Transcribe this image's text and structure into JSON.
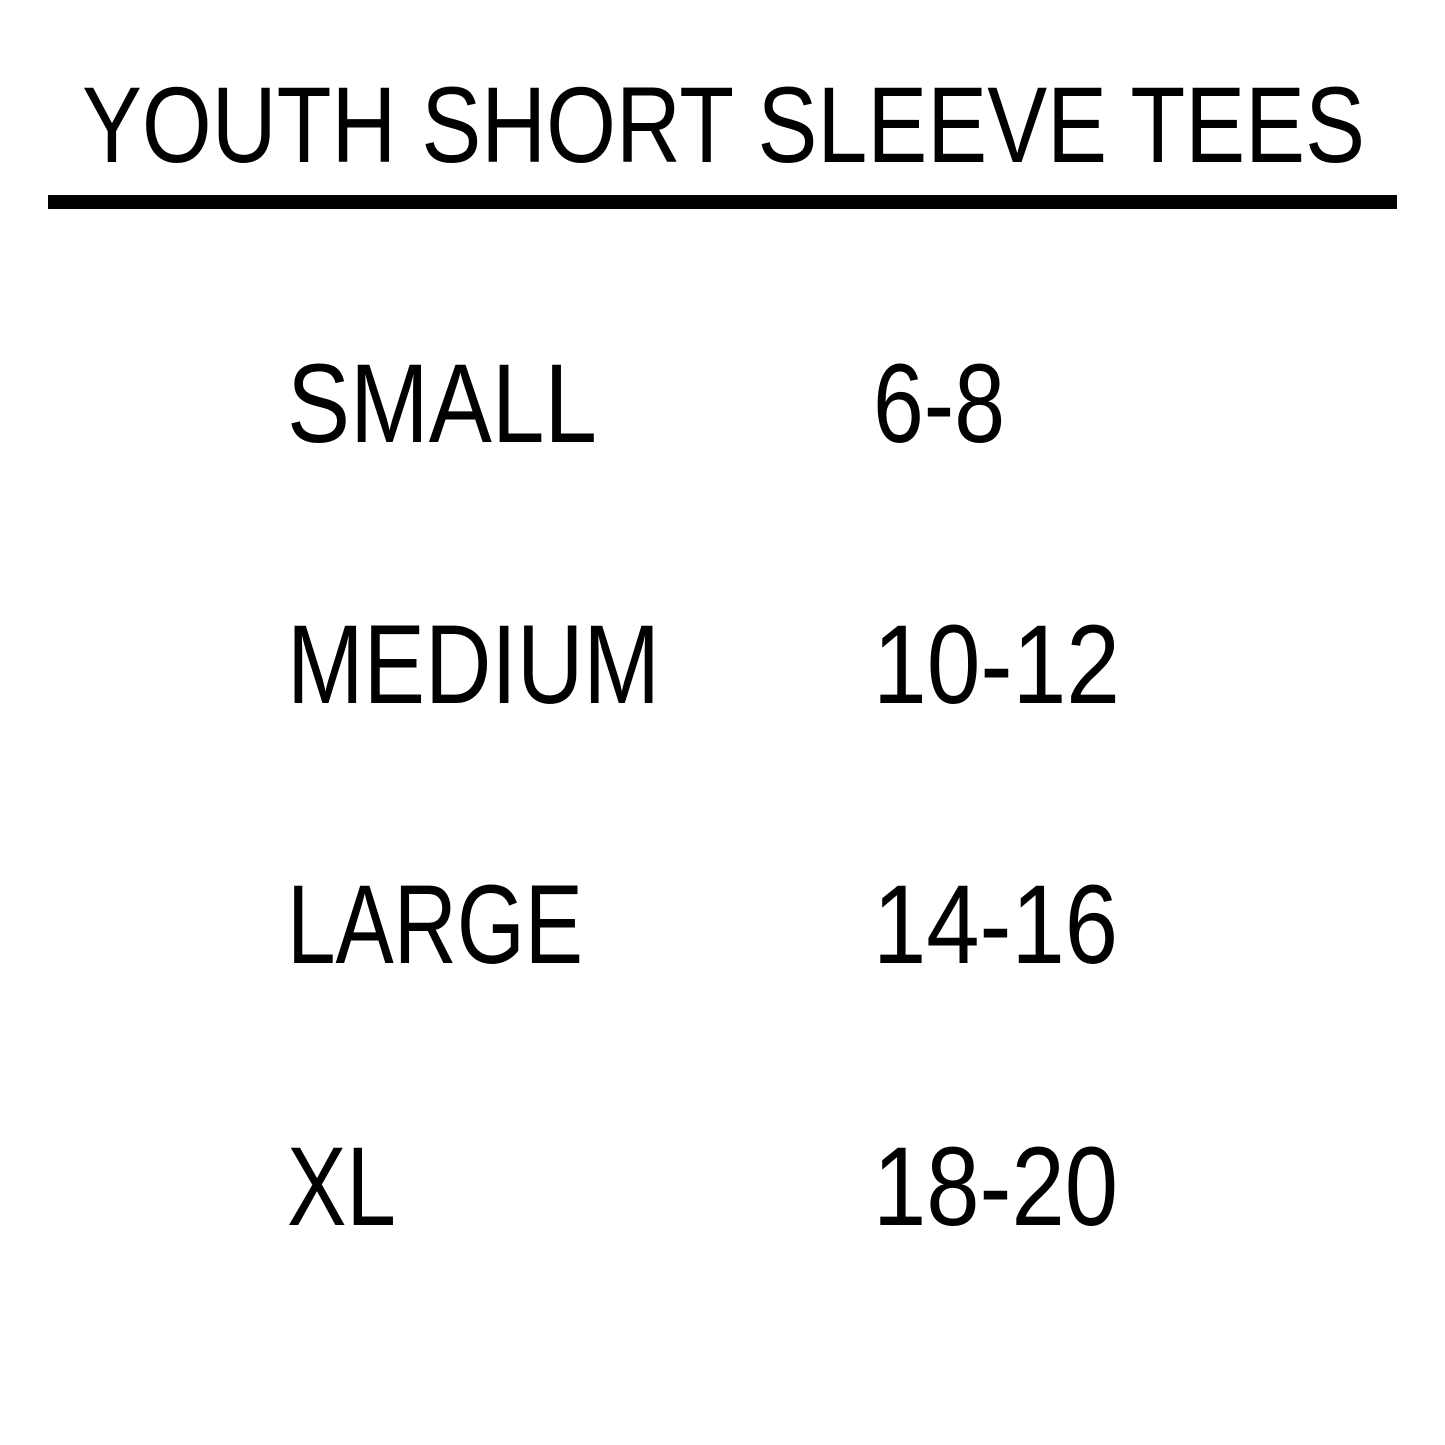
{
  "title": "YOUTH SHORT SLEEVE TEES",
  "colors": {
    "text": "#000000",
    "background": "#ffffff",
    "rule": "#000000"
  },
  "rows": [
    {
      "size": "SMALL",
      "range": "6-8"
    },
    {
      "size": "MEDIUM",
      "range": "10-12"
    },
    {
      "size": "LARGE",
      "range": "14-16"
    },
    {
      "size": "XL",
      "range": "18-20"
    }
  ]
}
